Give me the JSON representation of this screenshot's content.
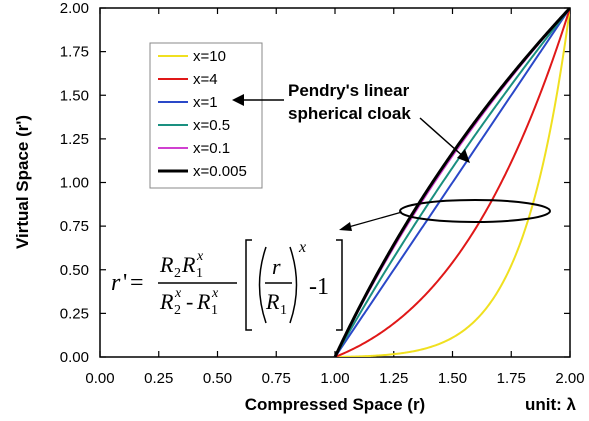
{
  "chart_data": {
    "type": "line",
    "xlabel": "Compressed Space (r)",
    "ylabel": "Virtual Space (r')",
    "unit_label": "unit: λ",
    "xlim": [
      0,
      2
    ],
    "ylim": [
      0,
      2
    ],
    "x_ticks": [
      "0.00",
      "0.25",
      "0.50",
      "0.75",
      "1.00",
      "1.25",
      "1.50",
      "1.75",
      "2.00"
    ],
    "y_ticks": [
      "0.00",
      "0.25",
      "0.50",
      "0.75",
      "1.00",
      "1.25",
      "1.50",
      "1.75",
      "2.00"
    ],
    "grid": false,
    "legend_position": "top-left",
    "formula": "r' = R2 R1^x / (R2^x - R1^x) [ (r/R1)^x - 1 ]",
    "R1": 1,
    "R2": 2,
    "series": [
      {
        "name": "x=10",
        "exponent": 10,
        "color": "#f0e020"
      },
      {
        "name": "x=4",
        "exponent": 4,
        "color": "#e01818"
      },
      {
        "name": "x=1",
        "exponent": 1,
        "color": "#2a48c8"
      },
      {
        "name": "x=0.5",
        "exponent": 0.5,
        "color": "#1a9080"
      },
      {
        "name": "x=0.1",
        "exponent": 0.1,
        "color": "#d040d0"
      },
      {
        "name": "x=0.005",
        "exponent": 0.005,
        "color": "#000000"
      }
    ],
    "annotations": {
      "pendry_line1": "Pendry's linear",
      "pendry_line2": "spherical cloak"
    }
  }
}
